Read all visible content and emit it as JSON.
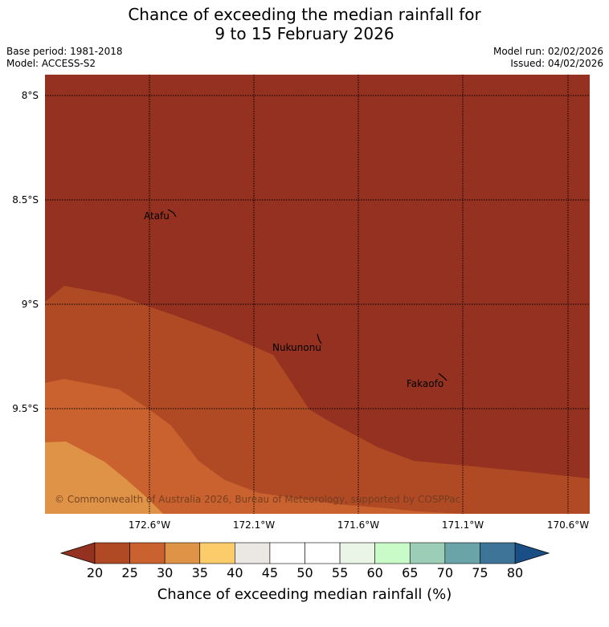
{
  "header": {
    "title_line1": "Chance of exceeding the median rainfall for",
    "title_line2": "9 to 15 February 2026",
    "base_period": "Base period: 1981-2018",
    "model": "Model: ACCESS-S2",
    "model_run": "Model run: 02/02/2026",
    "issued": "Issued: 04/02/2026"
  },
  "map": {
    "lat_labels": [
      "8°S",
      "8.5°S",
      "9°S",
      "9.5°S"
    ],
    "lon_labels": [
      "172.6°W",
      "172.1°W",
      "171.6°W",
      "171.1°W",
      "170.6°W"
    ],
    "places": [
      {
        "name": "Atafu"
      },
      {
        "name": "Nukunonu"
      },
      {
        "name": "Fakaofo"
      }
    ],
    "copyright": "© Commonwealth of Australia 2026, Bureau of Meteorology, supported by COSPPac"
  },
  "colorbar": {
    "title": "Chance of exceeding median rainfall (%)",
    "ticks": [
      "20",
      "25",
      "30",
      "35",
      "40",
      "45",
      "50",
      "55",
      "60",
      "65",
      "70",
      "75",
      "80"
    ],
    "under_color": "#943120",
    "over_color": "#1a4f85",
    "colors": [
      "#b04a25",
      "#c9622e",
      "#df9347",
      "#fdcc6a",
      "#ebe8e4",
      "#ffffff",
      "#ffffff",
      "#eaf5e8",
      "#c9fbc9",
      "#9ccdb6",
      "#6aa3a8",
      "#3f7499"
    ]
  },
  "chart_data": {
    "type": "heatmap",
    "title": "Chance of exceeding the median rainfall for 9 to 15 February 2026",
    "x_axis": [
      "172.6°W",
      "171.1°W",
      "170.6°W"
    ],
    "y_axis": [
      "8°S",
      "8.5°S",
      "9°S",
      "9.5°S"
    ],
    "zones": [
      {
        "range": "< 20%",
        "color": "#943120"
      },
      {
        "range": "20–25%",
        "color": "#b04a25"
      },
      {
        "range": "25–30%",
        "color": "#c9622e"
      },
      {
        "range": "30–35%",
        "color": "#df9347"
      }
    ]
  }
}
